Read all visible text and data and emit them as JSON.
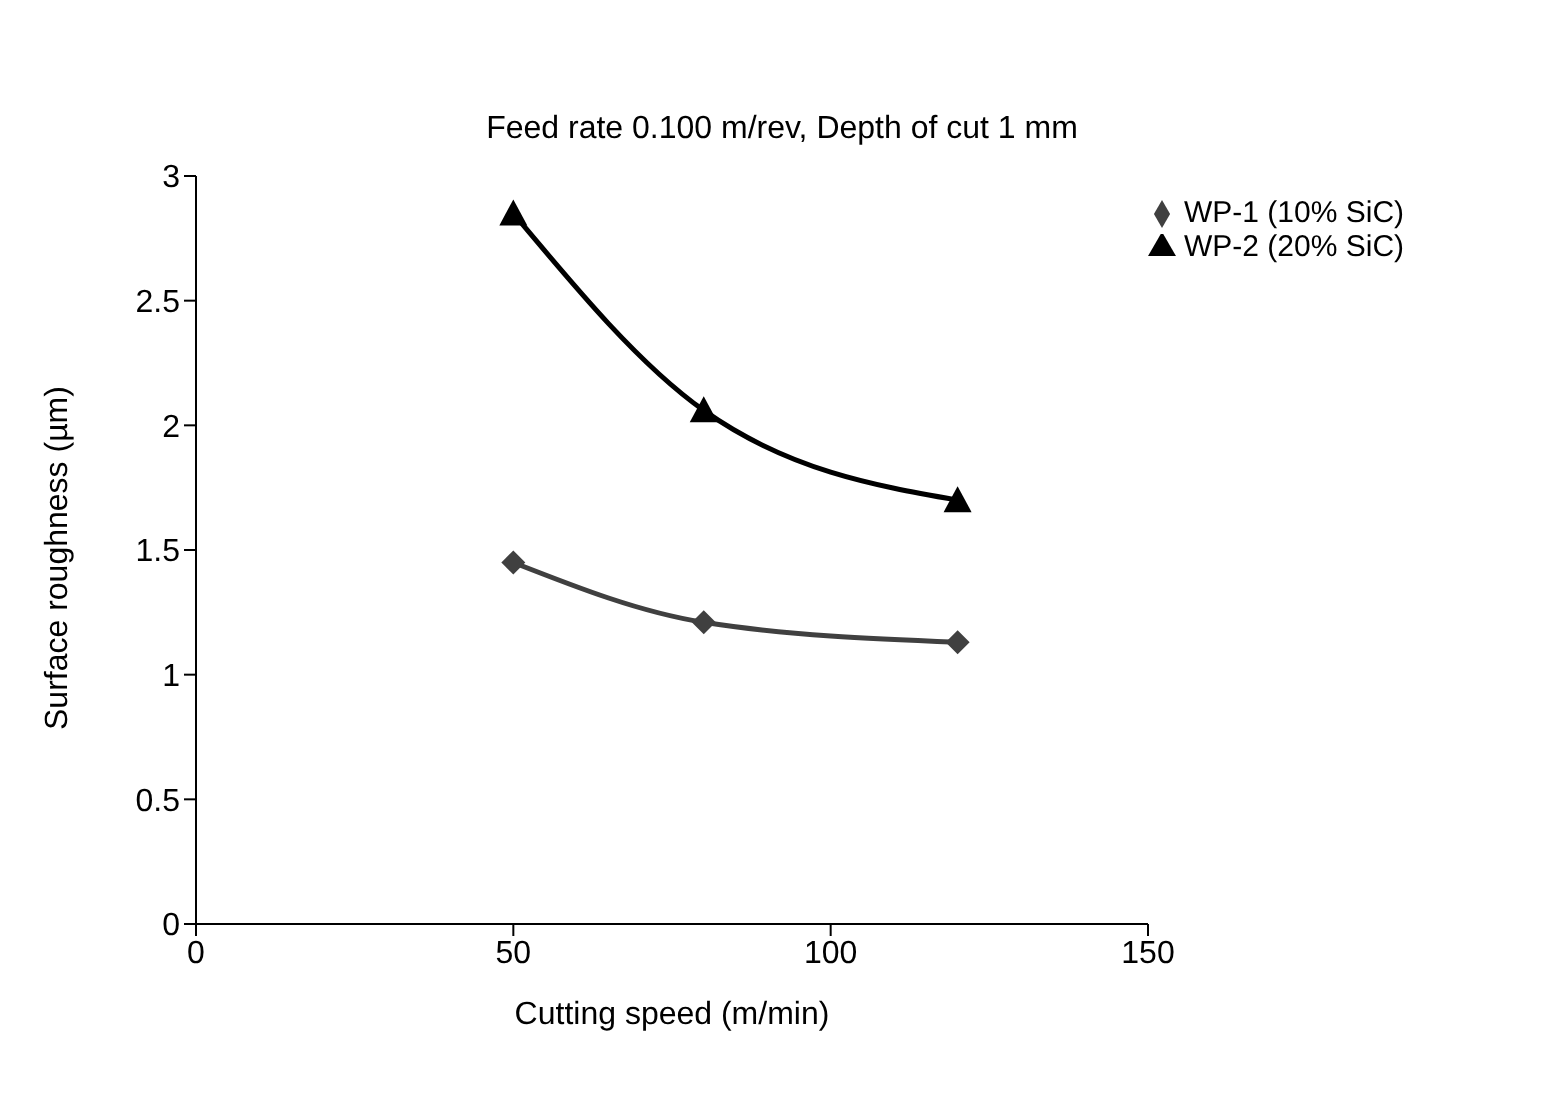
{
  "chart_data": {
    "type": "line",
    "title": "Feed rate 0.100 m/rev, Depth of cut 1 mm",
    "xlabel": "Cutting speed (m/min)",
    "ylabel": "Surface roughness (µm)",
    "x": [
      50,
      80,
      120
    ],
    "series": [
      {
        "name": "WP-1 (10% SiC)",
        "color": "#404040",
        "values": [
          1.45,
          1.21,
          1.13
        ],
        "marker": "diamond"
      },
      {
        "name": "WP-2 (20% SiC)",
        "color": "#000000",
        "values": [
          2.85,
          2.06,
          1.7
        ],
        "marker": "triangle"
      }
    ],
    "xlim": [
      0,
      150
    ],
    "xticks": [
      0,
      50,
      100,
      150
    ],
    "ylim": [
      0,
      3
    ],
    "yticks": [
      0,
      0.5,
      1,
      1.5,
      2,
      2.5,
      3
    ],
    "grid": false,
    "legend": "top right",
    "line_style": "solid"
  }
}
